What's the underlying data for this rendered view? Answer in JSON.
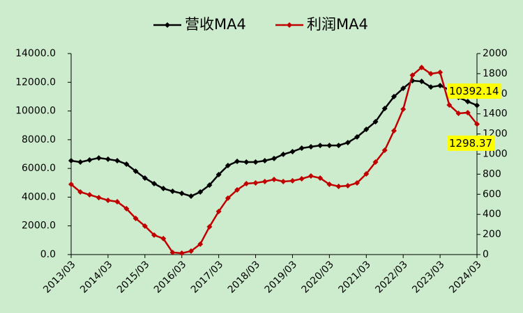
{
  "chart_data": {
    "type": "line",
    "categories": [
      "2013/03",
      null,
      null,
      null,
      "2014/03",
      null,
      null,
      null,
      "2015/03",
      null,
      null,
      null,
      "2016/03",
      null,
      null,
      null,
      "2017/03",
      null,
      null,
      null,
      "2018/03",
      null,
      null,
      null,
      "2019/03",
      null,
      null,
      null,
      "2020/03",
      null,
      null,
      null,
      "2021/03",
      null,
      null,
      null,
      "2022/03",
      null,
      null,
      null,
      "2023/03",
      null,
      null,
      null,
      "2024/03"
    ],
    "series": [
      {
        "name": "营收MA4",
        "color": "#000000",
        "axis": "y",
        "values": [
          6540,
          6440,
          6590,
          6730,
          6640,
          6540,
          6300,
          5810,
          5330,
          4940,
          4600,
          4410,
          4260,
          4070,
          4360,
          4840,
          5570,
          6200,
          6490,
          6440,
          6440,
          6540,
          6690,
          6980,
          7170,
          7410,
          7510,
          7600,
          7600,
          7600,
          7800,
          8190,
          8720,
          9250,
          10170,
          11000,
          11580,
          12110,
          12060,
          11670,
          11770,
          11480,
          10950,
          10660,
          10392.14
        ]
      },
      {
        "name": "利润MA4",
        "color": "#c00000",
        "axis": "y2",
        "values": [
          699,
          623,
          595,
          567,
          540,
          526,
          457,
          360,
          284,
          194,
          159,
          21,
          14,
          35,
          104,
          277,
          429,
          561,
          644,
          706,
          713,
          727,
          747,
          727,
          734,
          754,
          782,
          761,
          699,
          678,
          685,
          713,
          803,
          920,
          1038,
          1232,
          1446,
          1785,
          1862,
          1799,
          1813,
          1488,
          1405,
          1412,
          1298.37
        ]
      }
    ],
    "ylim": [
      0,
      14000
    ],
    "yticks": [
      {
        "value": 0,
        "label": "0.0"
      },
      {
        "value": 2000,
        "label": "2000.0"
      },
      {
        "value": 4000,
        "label": "4000.0"
      },
      {
        "value": 6000,
        "label": "6000.0"
      },
      {
        "value": 8000,
        "label": "8000.0"
      },
      {
        "value": 10000,
        "label": "10000.0"
      },
      {
        "value": 12000,
        "label": "12000.0"
      },
      {
        "value": 14000,
        "label": "14000.0"
      }
    ],
    "y2lim": [
      0,
      2000
    ],
    "y2ticks": [
      0,
      200,
      400,
      600,
      800,
      1000,
      1200,
      1400,
      1600,
      1800,
      2000
    ],
    "label_last_point": true,
    "legend": "top"
  }
}
